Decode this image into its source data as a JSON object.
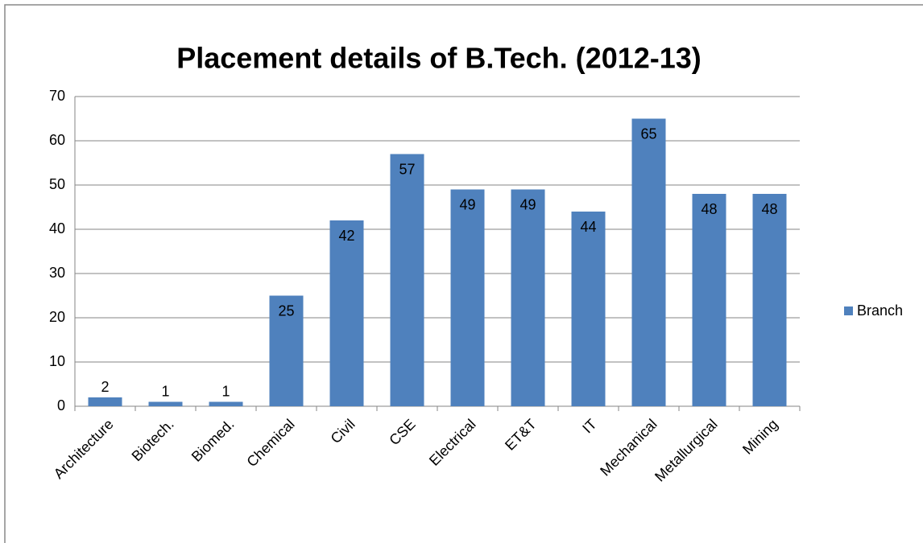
{
  "chart_data": {
    "type": "bar",
    "title": "Placement details of B.Tech. (2012-13)",
    "categories": [
      "Architecture",
      "Biotech.",
      "Biomed.",
      "Chemical",
      "Civil",
      "CSE",
      "Electrical",
      "ET&T",
      "IT",
      "Mechanical",
      "Metallurgical",
      "Mining"
    ],
    "series": [
      {
        "name": "Branch",
        "color": "#4f81bd",
        "values": [
          2,
          1,
          1,
          25,
          42,
          57,
          49,
          49,
          44,
          65,
          48,
          48
        ]
      }
    ],
    "ylim": [
      0,
      70
    ],
    "yticks": [
      0,
      10,
      20,
      30,
      40,
      50,
      60,
      70
    ],
    "grid": true,
    "legend": "right"
  }
}
